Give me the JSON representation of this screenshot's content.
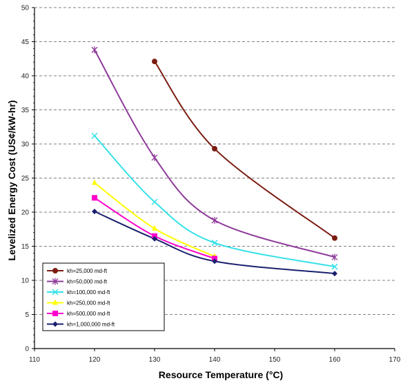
{
  "chart_data": {
    "type": "line",
    "title": "",
    "xlabel": "Resource Temperature (°C)",
    "ylabel": "Levelized Energy Cost (US¢/kW-hr)",
    "xlim": [
      110,
      170
    ],
    "ylim": [
      0,
      50
    ],
    "xticks": [
      "110",
      "120",
      "130",
      "140",
      "150",
      "160",
      "170"
    ],
    "yticks": [
      "0",
      "5",
      "10",
      "15",
      "20",
      "25",
      "30",
      "35",
      "40",
      "45",
      "50"
    ],
    "grid": "horizontal dashed",
    "legend_position": "bottom-left",
    "series": [
      {
        "name": "kh=25,000  md-ft",
        "color": "#7b1c12",
        "marker": "circle",
        "x": [
          130,
          140,
          160
        ],
        "y": [
          42.1,
          29.3,
          16.2
        ]
      },
      {
        "name": "kh=50,000  md-ft",
        "color": "#8e3a9a",
        "marker": "star",
        "x": [
          120,
          130,
          140,
          160
        ],
        "y": [
          43.8,
          28.0,
          18.8,
          13.4
        ]
      },
      {
        "name": "kh=100,000  md-ft",
        "color": "#33e0e8",
        "marker": "x",
        "x": [
          120,
          130,
          140,
          160
        ],
        "y": [
          31.2,
          21.5,
          15.5,
          12.0
        ]
      },
      {
        "name": "kh=250,000  md-ft",
        "color": "#ffff00",
        "marker": "triangle",
        "x": [
          120,
          130,
          140
        ],
        "y": [
          24.3,
          17.6,
          13.5
        ]
      },
      {
        "name": "kh=500,000  md-ft",
        "color": "#ff00cc",
        "marker": "square",
        "x": [
          120,
          130,
          140
        ],
        "y": [
          22.1,
          16.5,
          13.2
        ]
      },
      {
        "name": "kh=1,000,000  md-ft",
        "color": "#1a1f6e",
        "marker": "diamond",
        "x": [
          120,
          130,
          140,
          160
        ],
        "y": [
          20.1,
          16.1,
          12.8,
          11.0
        ]
      }
    ]
  }
}
